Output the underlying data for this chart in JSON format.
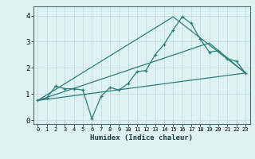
{
  "xlabel": "Humidex (Indice chaleur)",
  "bg_color": "#dff2f2",
  "line_color": "#2d7d78",
  "grid_color": "#c0dede",
  "xlim": [
    -0.5,
    23.5
  ],
  "ylim": [
    -0.15,
    4.35
  ],
  "xticks": [
    0,
    1,
    2,
    3,
    4,
    5,
    6,
    7,
    8,
    9,
    10,
    11,
    12,
    13,
    14,
    15,
    16,
    17,
    18,
    19,
    20,
    21,
    22,
    23
  ],
  "yticks": [
    0,
    1,
    2,
    3,
    4
  ],
  "series1_x": [
    0,
    1,
    2,
    3,
    4,
    5,
    6,
    7,
    8,
    9,
    10,
    11,
    12,
    13,
    14,
    15,
    16,
    17,
    18,
    19,
    20,
    21,
    22,
    23
  ],
  "series1_y": [
    0.75,
    0.85,
    1.3,
    1.2,
    1.2,
    1.15,
    0.05,
    0.9,
    1.25,
    1.15,
    1.4,
    1.85,
    1.9,
    2.5,
    2.9,
    3.45,
    3.95,
    3.7,
    3.1,
    2.6,
    2.65,
    2.35,
    2.25,
    1.8
  ],
  "series2_x": [
    0,
    23
  ],
  "series2_y": [
    0.75,
    1.8
  ],
  "series3_x": [
    0,
    15,
    23
  ],
  "series3_y": [
    0.75,
    3.95,
    1.8
  ],
  "series4_x": [
    0,
    19,
    23
  ],
  "series4_y": [
    0.75,
    2.95,
    1.8
  ]
}
